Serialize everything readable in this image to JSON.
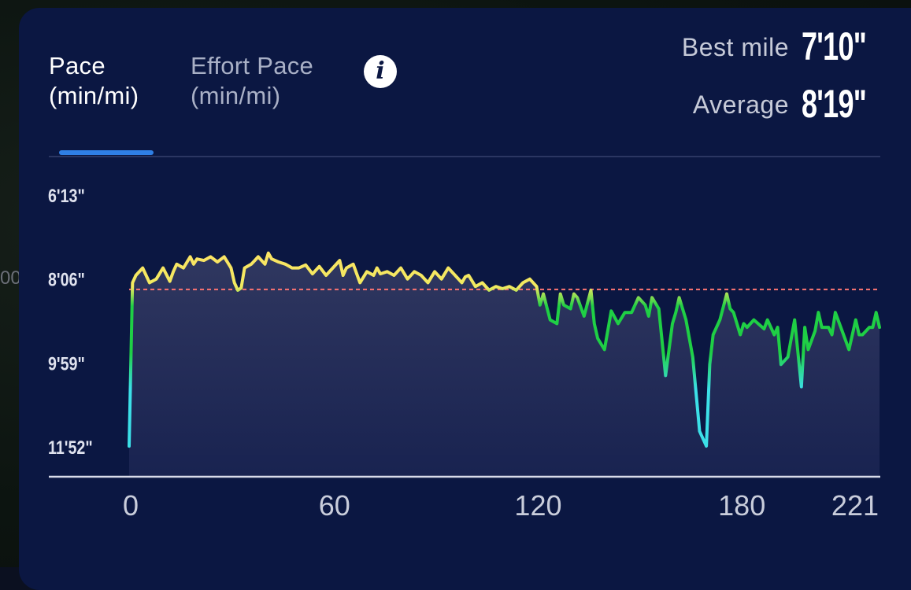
{
  "tabs": [
    {
      "label": "Pace\n(min/mi)",
      "active": true
    },
    {
      "label": "Effort Pace\n(min/mi)",
      "active": false
    }
  ],
  "info_icon": {
    "glyph": "i",
    "name": "info-icon"
  },
  "stats": {
    "best_mile_label": "Best mile",
    "best_mile_value": "7'10\"",
    "average_label": "Average",
    "average_value": "8'19\""
  },
  "side_glyph": "00",
  "colors": {
    "card_bg": "#0b1742",
    "active_tab_underline": "#2f7fe5",
    "fast": "#ffe066",
    "medium": "#1fcf45",
    "slow": "#3ce0e8",
    "average_line": "#f07070"
  },
  "chart_data": {
    "type": "line",
    "title": "",
    "xlabel": "",
    "ylabel": "",
    "y_ticks": [
      {
        "label": "6'13\"",
        "value": 373
      },
      {
        "label": "8'06\"",
        "value": 486
      },
      {
        "label": "9'59\"",
        "value": 599
      },
      {
        "label": "11'52\"",
        "value": 712
      }
    ],
    "x_ticks": [
      0,
      60,
      120,
      180,
      221
    ],
    "xlim": [
      0,
      221
    ],
    "ylim": [
      373,
      712
    ],
    "y_inverted": true,
    "average_line_value": 499,
    "series": [
      {
        "x": [
          0,
          1,
          2,
          4,
          6,
          8,
          10,
          12,
          13,
          14,
          16,
          18,
          19,
          20,
          22,
          24,
          26,
          28,
          30,
          31,
          32,
          33,
          34,
          36,
          37,
          38,
          40,
          41,
          42,
          44,
          46,
          48,
          50,
          52,
          54,
          56,
          58,
          60,
          62,
          63,
          64,
          66,
          68,
          70,
          72,
          73,
          74,
          76,
          78,
          80,
          82,
          84,
          86,
          88,
          90,
          92,
          94,
          96,
          98,
          99,
          100,
          102,
          104,
          106,
          108,
          110,
          112,
          114,
          116,
          118,
          120,
          121,
          122,
          124,
          126,
          127,
          128,
          130,
          131,
          132,
          134,
          136,
          137,
          138,
          140,
          142,
          144,
          146,
          148,
          150,
          152,
          153,
          154,
          156,
          158,
          160,
          161,
          162,
          164,
          166,
          168,
          170,
          171,
          172,
          174,
          176,
          177,
          178,
          180,
          181,
          182,
          184,
          186,
          187,
          188,
          190,
          191,
          192,
          194,
          196,
          198,
          199,
          200,
          202,
          203,
          204,
          206,
          207,
          208,
          210,
          212,
          214,
          215,
          216,
          218,
          219,
          220,
          221
        ],
        "y": [
          710,
          490,
          480,
          470,
          490,
          485,
          470,
          488,
          475,
          465,
          470,
          455,
          465,
          458,
          460,
          455,
          462,
          455,
          470,
          490,
          500,
          497,
          470,
          465,
          460,
          455,
          465,
          450,
          458,
          462,
          465,
          470,
          470,
          466,
          478,
          468,
          480,
          470,
          460,
          480,
          470,
          465,
          490,
          475,
          480,
          470,
          478,
          475,
          480,
          470,
          485,
          475,
          480,
          490,
          475,
          485,
          470,
          480,
          490,
          482,
          480,
          495,
          490,
          500,
          495,
          498,
          495,
          500,
          490,
          485,
          495,
          520,
          505,
          540,
          545,
          505,
          520,
          525,
          505,
          510,
          535,
          500,
          545,
          565,
          580,
          528,
          545,
          530,
          530,
          510,
          520,
          535,
          510,
          525,
          615,
          545,
          530,
          510,
          540,
          590,
          690,
          710,
          600,
          560,
          540,
          505,
          525,
          530,
          560,
          545,
          550,
          540,
          548,
          552,
          540,
          560,
          550,
          600,
          590,
          540,
          630,
          550,
          580,
          555,
          530,
          550,
          550,
          560,
          530,
          555,
          580,
          540,
          560,
          560,
          550,
          550,
          530,
          550
        ]
      }
    ]
  }
}
